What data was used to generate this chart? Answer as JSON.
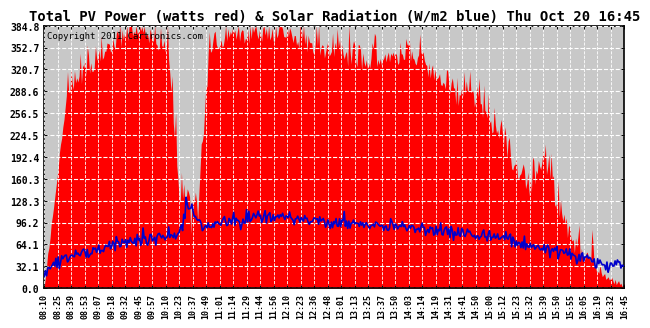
{
  "title": "Total PV Power (watts red) & Solar Radiation (W/m2 blue) Thu Oct 20 16:45",
  "copyright_text": "Copyright 2011 Cartronics.com",
  "ymax": 384.8,
  "ymin": 0.0,
  "yticks": [
    0.0,
    32.1,
    64.1,
    96.2,
    128.3,
    160.3,
    192.4,
    224.5,
    256.5,
    288.6,
    320.7,
    352.7,
    384.8
  ],
  "ytick_labels": [
    "0.0",
    "32.1",
    "64.1",
    "96.2",
    "128.3",
    "160.3",
    "192.4",
    "224.5",
    "256.5",
    "288.6",
    "320.7",
    "352.7",
    "384.8"
  ],
  "xtick_labels": [
    "08:10",
    "08:25",
    "08:39",
    "08:53",
    "09:07",
    "09:18",
    "09:32",
    "09:45",
    "09:57",
    "10:10",
    "10:23",
    "10:37",
    "10:49",
    "11:01",
    "11:14",
    "11:29",
    "11:44",
    "11:56",
    "12:10",
    "12:23",
    "12:36",
    "12:48",
    "13:01",
    "13:13",
    "13:25",
    "13:37",
    "13:50",
    "14:03",
    "14:14",
    "14:19",
    "14:31",
    "14:41",
    "14:50",
    "15:00",
    "15:12",
    "15:23",
    "15:32",
    "15:39",
    "15:50",
    "15:55",
    "16:05",
    "16:19",
    "16:32",
    "16:45"
  ],
  "red_fill_color": "#FF0000",
  "blue_line_color": "#0000CC",
  "background_color": "#FFFFFF",
  "chart_bg_color": "#DDDDDD",
  "grid_color": "#FFFFFF",
  "border_color": "#000000",
  "title_fontsize": 10,
  "copyright_fontsize": 6.5,
  "ytick_fontsize": 7,
  "xtick_fontsize": 6
}
